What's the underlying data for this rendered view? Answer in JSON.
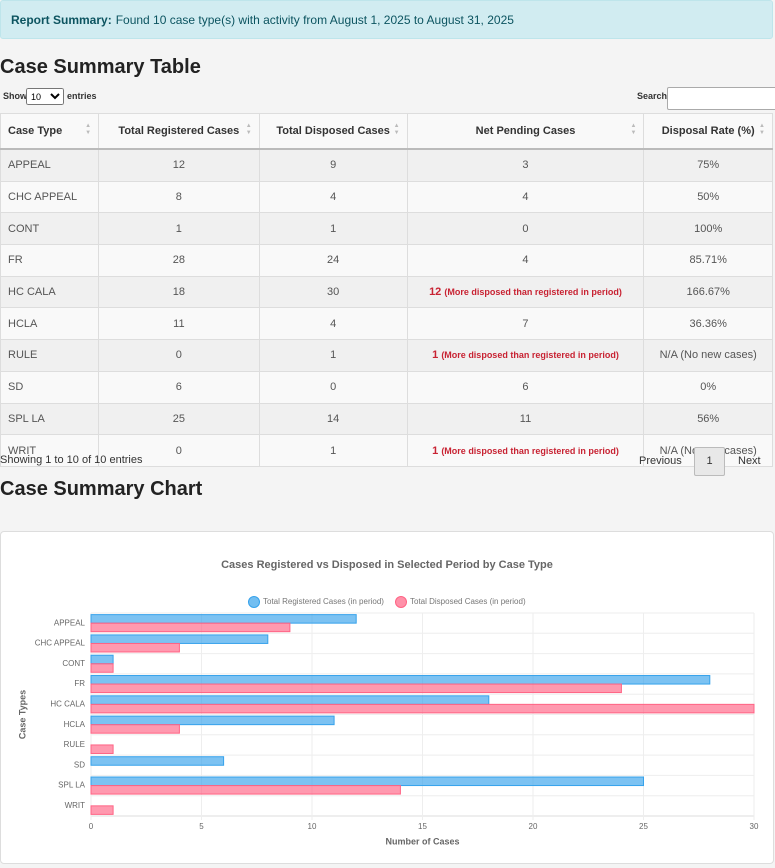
{
  "alert": {
    "label": "Report Summary:",
    "text": "Found 10 case type(s) with activity from August 1, 2025 to August 31, 2025"
  },
  "table_section": {
    "title": "Case Summary Table",
    "show_label": "Show",
    "page_size": "10",
    "entries_label": "entries",
    "search_label": "Search:",
    "columns": [
      "Case Type",
      "Total Registered Cases",
      "Total Disposed Cases",
      "Net Pending Cases",
      "Disposal Rate (%)"
    ],
    "rows": [
      [
        "APPEAL",
        12,
        9,
        3,
        "75%"
      ],
      [
        "CHC APPEAL",
        8,
        4,
        4,
        "50%"
      ],
      [
        "CONT",
        1,
        1,
        0,
        "100%"
      ],
      [
        "FR",
        28,
        24,
        4,
        "85.71%"
      ],
      [
        "HC CALA",
        18,
        30,
        {
          "value": 12,
          "note": "(More disposed than registered in period)"
        },
        "166.67%"
      ],
      [
        "HCLA",
        11,
        4,
        7,
        "36.36%"
      ],
      [
        "RULE",
        0,
        1,
        {
          "value": 1,
          "note": "(More disposed than registered in period)"
        },
        "N/A (No new cases)"
      ],
      [
        "SD",
        6,
        0,
        6,
        "0%"
      ],
      [
        "SPL LA",
        25,
        14,
        11,
        "56%"
      ],
      [
        "WRIT",
        0,
        1,
        {
          "value": 1,
          "note": "(More disposed than registered in period)"
        },
        "N/A (No new cases)"
      ]
    ],
    "info": "Showing 1 to 10 of 10 entries",
    "pagination": {
      "previous": "Previous",
      "page": "1",
      "next": "Next"
    }
  },
  "chart_heading": "Case Summary Chart",
  "chart_data": {
    "type": "hbar",
    "title": "Cases Registered vs Disposed in Selected Period by Case Type",
    "x_label": "Number of Cases",
    "y_label": "Case Types",
    "categories": [
      "APPEAL",
      "CHC APPEAL",
      "CONT",
      "FR",
      "HC CALA",
      "HCLA",
      "RULE",
      "SD",
      "SPL LA",
      "WRIT"
    ],
    "series": [
      {
        "name": "Total Registered Cases (in period)",
        "color": "#36a2eb",
        "values": [
          12,
          8,
          1,
          28,
          18,
          11,
          0,
          6,
          25,
          0
        ]
      },
      {
        "name": "Total Disposed Cases (in period)",
        "color": "#ff6384",
        "values": [
          9,
          4,
          1,
          24,
          30,
          4,
          1,
          0,
          14,
          1
        ]
      }
    ],
    "xlim": [
      0,
      30
    ],
    "xticks": [
      0,
      5,
      10,
      15,
      20,
      25,
      30
    ],
    "grid": true,
    "legend": "top"
  }
}
